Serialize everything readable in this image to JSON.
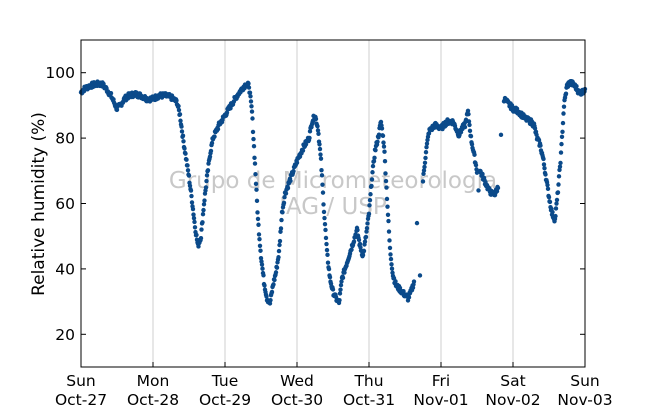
{
  "chart_data": {
    "type": "scatter",
    "title": "",
    "xlabel": "",
    "ylabel": "Relative humidity (%)",
    "xlim": [
      "Oct-27",
      "Nov-03"
    ],
    "ylim": [
      10,
      110
    ],
    "x_ticks": [
      {
        "day": "Sun",
        "date": "Oct-27"
      },
      {
        "day": "Mon",
        "date": "Oct-28"
      },
      {
        "day": "Tue",
        "date": "Oct-29"
      },
      {
        "day": "Wed",
        "date": "Oct-30"
      },
      {
        "day": "Thu",
        "date": "Oct-31"
      },
      {
        "day": "Fri",
        "date": "Nov-01"
      },
      {
        "day": "Sat",
        "date": "Nov-02"
      },
      {
        "day": "Sun",
        "date": "Nov-03"
      }
    ],
    "y_ticks": [
      20,
      40,
      60,
      80,
      100
    ],
    "grid": "vertical at day boundaries",
    "watermark": [
      "Grupo de Micrometeorologia",
      "IAG / USP"
    ],
    "color": "#0b4a8a",
    "series": [
      {
        "points": [
          [
            "2019-10-27T00:00",
            94
          ],
          [
            "2019-10-27T01:00",
            95
          ],
          [
            "2019-10-27T02:00",
            95.5
          ],
          [
            "2019-10-27T03:00",
            96
          ],
          [
            "2019-10-27T05:00",
            96.5
          ],
          [
            "2019-10-27T07:00",
            96.5
          ],
          [
            "2019-10-27T08:30",
            95
          ],
          [
            "2019-10-27T10:00",
            93
          ],
          [
            "2019-10-27T11:00",
            91
          ],
          [
            "2019-10-27T12:00",
            89
          ],
          [
            "2019-10-27T13:00",
            90
          ],
          [
            "2019-10-27T14:30",
            92
          ],
          [
            "2019-10-27T16:00",
            93
          ],
          [
            "2019-10-27T18:00",
            93.5
          ],
          [
            "2019-10-27T20:00",
            93
          ],
          [
            "2019-10-27T22:00",
            92
          ],
          [
            "2019-10-28T00:00",
            92
          ],
          [
            "2019-10-28T02:00",
            93
          ],
          [
            "2019-10-28T04:00",
            93
          ],
          [
            "2019-10-28T06:00",
            92.5
          ],
          [
            "2019-10-28T08:00",
            91
          ],
          [
            "2019-10-28T09:00",
            87
          ],
          [
            "2019-10-28T10:00",
            80
          ],
          [
            "2019-10-28T11:00",
            74
          ],
          [
            "2019-10-28T12:00",
            68
          ],
          [
            "2019-10-28T13:00",
            61
          ],
          [
            "2019-10-28T14:00",
            53
          ],
          [
            "2019-10-28T15:00",
            47
          ],
          [
            "2019-10-28T16:00",
            50
          ],
          [
            "2019-10-28T17:00",
            60
          ],
          [
            "2019-10-28T18:00",
            68
          ],
          [
            "2019-10-28T19:00",
            75
          ],
          [
            "2019-10-28T20:00",
            80
          ],
          [
            "2019-10-28T22:00",
            84
          ],
          [
            "2019-10-29T00:00",
            87
          ],
          [
            "2019-10-29T02:00",
            90
          ],
          [
            "2019-10-29T04:00",
            93
          ],
          [
            "2019-10-29T06:00",
            95.5
          ],
          [
            "2019-10-29T07:00",
            96.5
          ],
          [
            "2019-10-29T08:00",
            96
          ],
          [
            "2019-10-29T09:00",
            88
          ],
          [
            "2019-10-29T10:00",
            72
          ],
          [
            "2019-10-29T11:00",
            55
          ],
          [
            "2019-10-29T12:00",
            44
          ],
          [
            "2019-10-29T13:00",
            36
          ],
          [
            "2019-10-29T14:00",
            31
          ],
          [
            "2019-10-29T15:00",
            29.5
          ],
          [
            "2019-10-29T16:00",
            35
          ],
          [
            "2019-10-29T17:00",
            39
          ],
          [
            "2019-10-29T18:00",
            45
          ],
          [
            "2019-10-29T19:00",
            57
          ],
          [
            "2019-10-29T20:00",
            63
          ],
          [
            "2019-10-29T22:00",
            68
          ],
          [
            "2019-10-30T00:00",
            73
          ],
          [
            "2019-10-30T02:00",
            77
          ],
          [
            "2019-10-30T04:00",
            80
          ],
          [
            "2019-10-30T05:00",
            85
          ],
          [
            "2019-10-30T06:00",
            87
          ],
          [
            "2019-10-30T07:00",
            83
          ],
          [
            "2019-10-30T08:00",
            73
          ],
          [
            "2019-10-30T09:00",
            58
          ],
          [
            "2019-10-30T10:00",
            45
          ],
          [
            "2019-10-30T11:00",
            37
          ],
          [
            "2019-10-30T12:00",
            33
          ],
          [
            "2019-10-30T13:00",
            31
          ],
          [
            "2019-10-30T14:00",
            29.5
          ],
          [
            "2019-10-30T15:00",
            37
          ],
          [
            "2019-10-30T16:00",
            40
          ],
          [
            "2019-10-30T17:00",
            43
          ],
          [
            "2019-10-30T18:00",
            46
          ],
          [
            "2019-10-30T19:00",
            49
          ],
          [
            "2019-10-30T20:00",
            52
          ],
          [
            "2019-10-30T21:00",
            47
          ],
          [
            "2019-10-30T22:00",
            44
          ],
          [
            "2019-10-30T23:00",
            50
          ],
          [
            "2019-10-31T00:00",
            57
          ],
          [
            "2019-10-31T01:00",
            68
          ],
          [
            "2019-10-31T02:00",
            76
          ],
          [
            "2019-10-31T03:00",
            80
          ],
          [
            "2019-10-31T04:00",
            85
          ],
          [
            "2019-10-31T05:00",
            78
          ],
          [
            "2019-10-31T06:00",
            62
          ],
          [
            "2019-10-31T07:00",
            46
          ],
          [
            "2019-10-31T08:00",
            38
          ],
          [
            "2019-10-31T09:00",
            35
          ],
          [
            "2019-10-31T10:00",
            34
          ],
          [
            "2019-10-31T11:00",
            33
          ],
          [
            "2019-10-31T12:00",
            32
          ],
          [
            "2019-10-31T13:00",
            31
          ],
          [
            "2019-10-31T14:00",
            33
          ],
          [
            "2019-10-31T15:00",
            36
          ],
          [
            "2019-10-31T17:00",
            43
          ],
          [
            "2019-10-31T18:00",
            67
          ],
          [
            "2019-10-31T19:00",
            76
          ],
          [
            "2019-10-31T20:00",
            82
          ],
          [
            "2019-10-31T22:00",
            84
          ],
          [
            "2019-11-01T00:00",
            83
          ],
          [
            "2019-11-01T02:00",
            85
          ],
          [
            "2019-11-01T04:00",
            85
          ],
          [
            "2019-11-01T06:00",
            81
          ],
          [
            "2019-11-01T07:00",
            83
          ],
          [
            "2019-11-01T08:00",
            84
          ],
          [
            "2019-11-01T09:00",
            88
          ],
          [
            "2019-11-01T10:00",
            80
          ],
          [
            "2019-11-01T11:00",
            75
          ],
          [
            "2019-11-01T12:00",
            70
          ],
          [
            "2019-11-01T13:00",
            70
          ],
          [
            "2019-11-01T14:00",
            68
          ],
          [
            "2019-11-01T15:00",
            66
          ],
          [
            "2019-11-01T16:00",
            64
          ],
          [
            "2019-11-01T17:00",
            63
          ],
          [
            "2019-11-01T18:00",
            63
          ],
          [
            "2019-11-01T19:00",
            65
          ],
          [
            "2019-11-01T20:00",
            81
          ],
          [
            "2019-11-01T21:00",
            92
          ],
          [
            "2019-11-01T22:00",
            91
          ],
          [
            "2019-11-02T00:00",
            89
          ],
          [
            "2019-11-02T02:00",
            88
          ],
          [
            "2019-11-02T04:00",
            86
          ],
          [
            "2019-11-02T06:00",
            85
          ],
          [
            "2019-11-02T07:00",
            84
          ],
          [
            "2019-11-02T08:00",
            80
          ],
          [
            "2019-11-02T09:00",
            78
          ],
          [
            "2019-11-02T10:00",
            74
          ],
          [
            "2019-11-02T11:00",
            68
          ],
          [
            "2019-11-02T12:00",
            62
          ],
          [
            "2019-11-02T13:00",
            57
          ],
          [
            "2019-11-02T14:00",
            55
          ],
          [
            "2019-11-02T15:00",
            64
          ],
          [
            "2019-11-02T16:00",
            75
          ],
          [
            "2019-11-02T17:00",
            90
          ],
          [
            "2019-11-02T18:00",
            96
          ],
          [
            "2019-11-02T19:00",
            97
          ],
          [
            "2019-11-02T20:00",
            96.5
          ],
          [
            "2019-11-02T21:00",
            95.5
          ],
          [
            "2019-11-02T22:00",
            94
          ],
          [
            "2019-11-02T23:00",
            94
          ],
          [
            "2019-11-03T00:00",
            95
          ]
        ]
      }
    ]
  }
}
